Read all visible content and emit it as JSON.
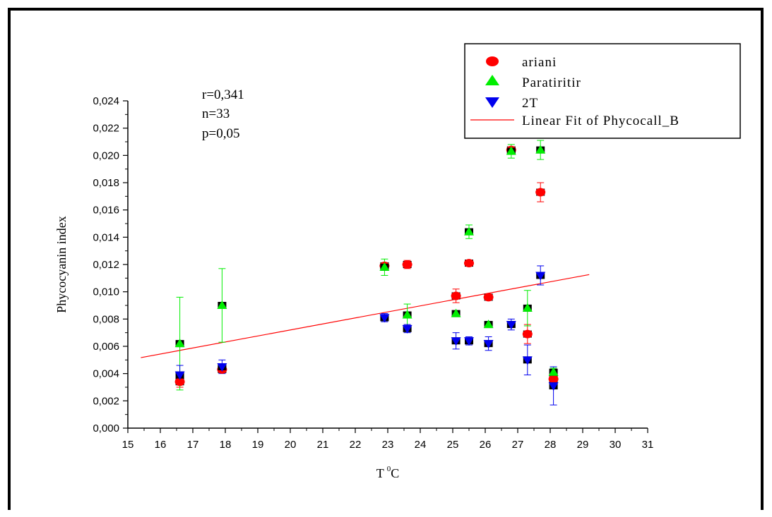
{
  "chart_data": {
    "type": "scatter",
    "title": "",
    "xlabel": "T",
    "xlabel_sup": "0",
    "xlabel_unit": "C",
    "ylabel": "Phycocyanin index",
    "xlim": [
      15,
      31
    ],
    "ylim": [
      0,
      0.024
    ],
    "x_ticks": [
      "15",
      "16",
      "17",
      "18",
      "19",
      "20",
      "21",
      "22",
      "23",
      "24",
      "25",
      "26",
      "27",
      "28",
      "29",
      "30",
      "31"
    ],
    "y_ticks": [
      "0,000",
      "0,002",
      "0,004",
      "0,006",
      "0,008",
      "0,010",
      "0,012",
      "0,014",
      "0,016",
      "0,018",
      "0,020",
      "0,022",
      "0,024"
    ],
    "grid": false,
    "legend_position": "top-right",
    "stats": [
      "r=0,341",
      "n=33",
      "p=0,05"
    ],
    "series": [
      {
        "name": "ariani",
        "marker": "circle",
        "color": "#ff0000",
        "points": [
          {
            "x": 16.6,
            "y": 0.0034,
            "err": 0.0004
          },
          {
            "x": 17.9,
            "y": 0.0043,
            "err": 0.0002
          },
          {
            "x": 22.9,
            "y": 0.0119,
            "err": 0.0002
          },
          {
            "x": 23.6,
            "y": 0.012,
            "err": 0.0003
          },
          {
            "x": 25.1,
            "y": 0.0097,
            "err": 0.0005
          },
          {
            "x": 25.5,
            "y": 0.0121,
            "err": 0.0001
          },
          {
            "x": 26.1,
            "y": 0.0096,
            "err": 0.0002
          },
          {
            "x": 26.8,
            "y": 0.0204,
            "err": 0.0002
          },
          {
            "x": 27.3,
            "y": 0.0069,
            "err": 0.0007
          },
          {
            "x": 27.7,
            "y": 0.0173,
            "err": 0.0007
          },
          {
            "x": 28.1,
            "y": 0.0036,
            "err": 0.0004
          }
        ]
      },
      {
        "name": "Paratiritir",
        "marker": "triangle-up",
        "color": "#00ee00",
        "points": [
          {
            "x": 16.6,
            "y": 0.0062,
            "err": 0.0034
          },
          {
            "x": 17.9,
            "y": 0.009,
            "err": 0.0027
          },
          {
            "x": 22.9,
            "y": 0.0118,
            "err": 0.0006
          },
          {
            "x": 23.6,
            "y": 0.0083,
            "err": 0.0008
          },
          {
            "x": 25.1,
            "y": 0.0084,
            "err": 0.0002
          },
          {
            "x": 25.5,
            "y": 0.0144,
            "err": 0.0005
          },
          {
            "x": 26.1,
            "y": 0.0076,
            "err": 0.0002
          },
          {
            "x": 26.8,
            "y": 0.0203,
            "err": 0.0005
          },
          {
            "x": 27.3,
            "y": 0.0088,
            "err": 0.0013
          },
          {
            "x": 27.7,
            "y": 0.0204,
            "err": 0.0007
          },
          {
            "x": 28.1,
            "y": 0.0041,
            "err": 0.0003
          }
        ]
      },
      {
        "name": "2T",
        "marker": "triangle-down",
        "color": "#0000ee",
        "points": [
          {
            "x": 16.6,
            "y": 0.0039,
            "err": 0.0007
          },
          {
            "x": 17.9,
            "y": 0.0045,
            "err": 0.0005
          },
          {
            "x": 22.9,
            "y": 0.0081,
            "err": 0.0003
          },
          {
            "x": 23.6,
            "y": 0.0073,
            "err": 0.0003
          },
          {
            "x": 25.1,
            "y": 0.0064,
            "err": 0.0006
          },
          {
            "x": 25.5,
            "y": 0.0064,
            "err": 0.0003
          },
          {
            "x": 26.1,
            "y": 0.0062,
            "err": 0.0005
          },
          {
            "x": 26.8,
            "y": 0.0076,
            "err": 0.0004
          },
          {
            "x": 27.3,
            "y": 0.005,
            "err": 0.0011
          },
          {
            "x": 27.7,
            "y": 0.0112,
            "err": 0.0007
          },
          {
            "x": 28.1,
            "y": 0.0031,
            "err": 0.0014
          }
        ]
      }
    ],
    "fit": {
      "name": "Linear Fit of Phycocall_B",
      "color": "#ff0000",
      "x": [
        15.4,
        29.2
      ],
      "y": [
        0.00517,
        0.01126
      ]
    }
  }
}
